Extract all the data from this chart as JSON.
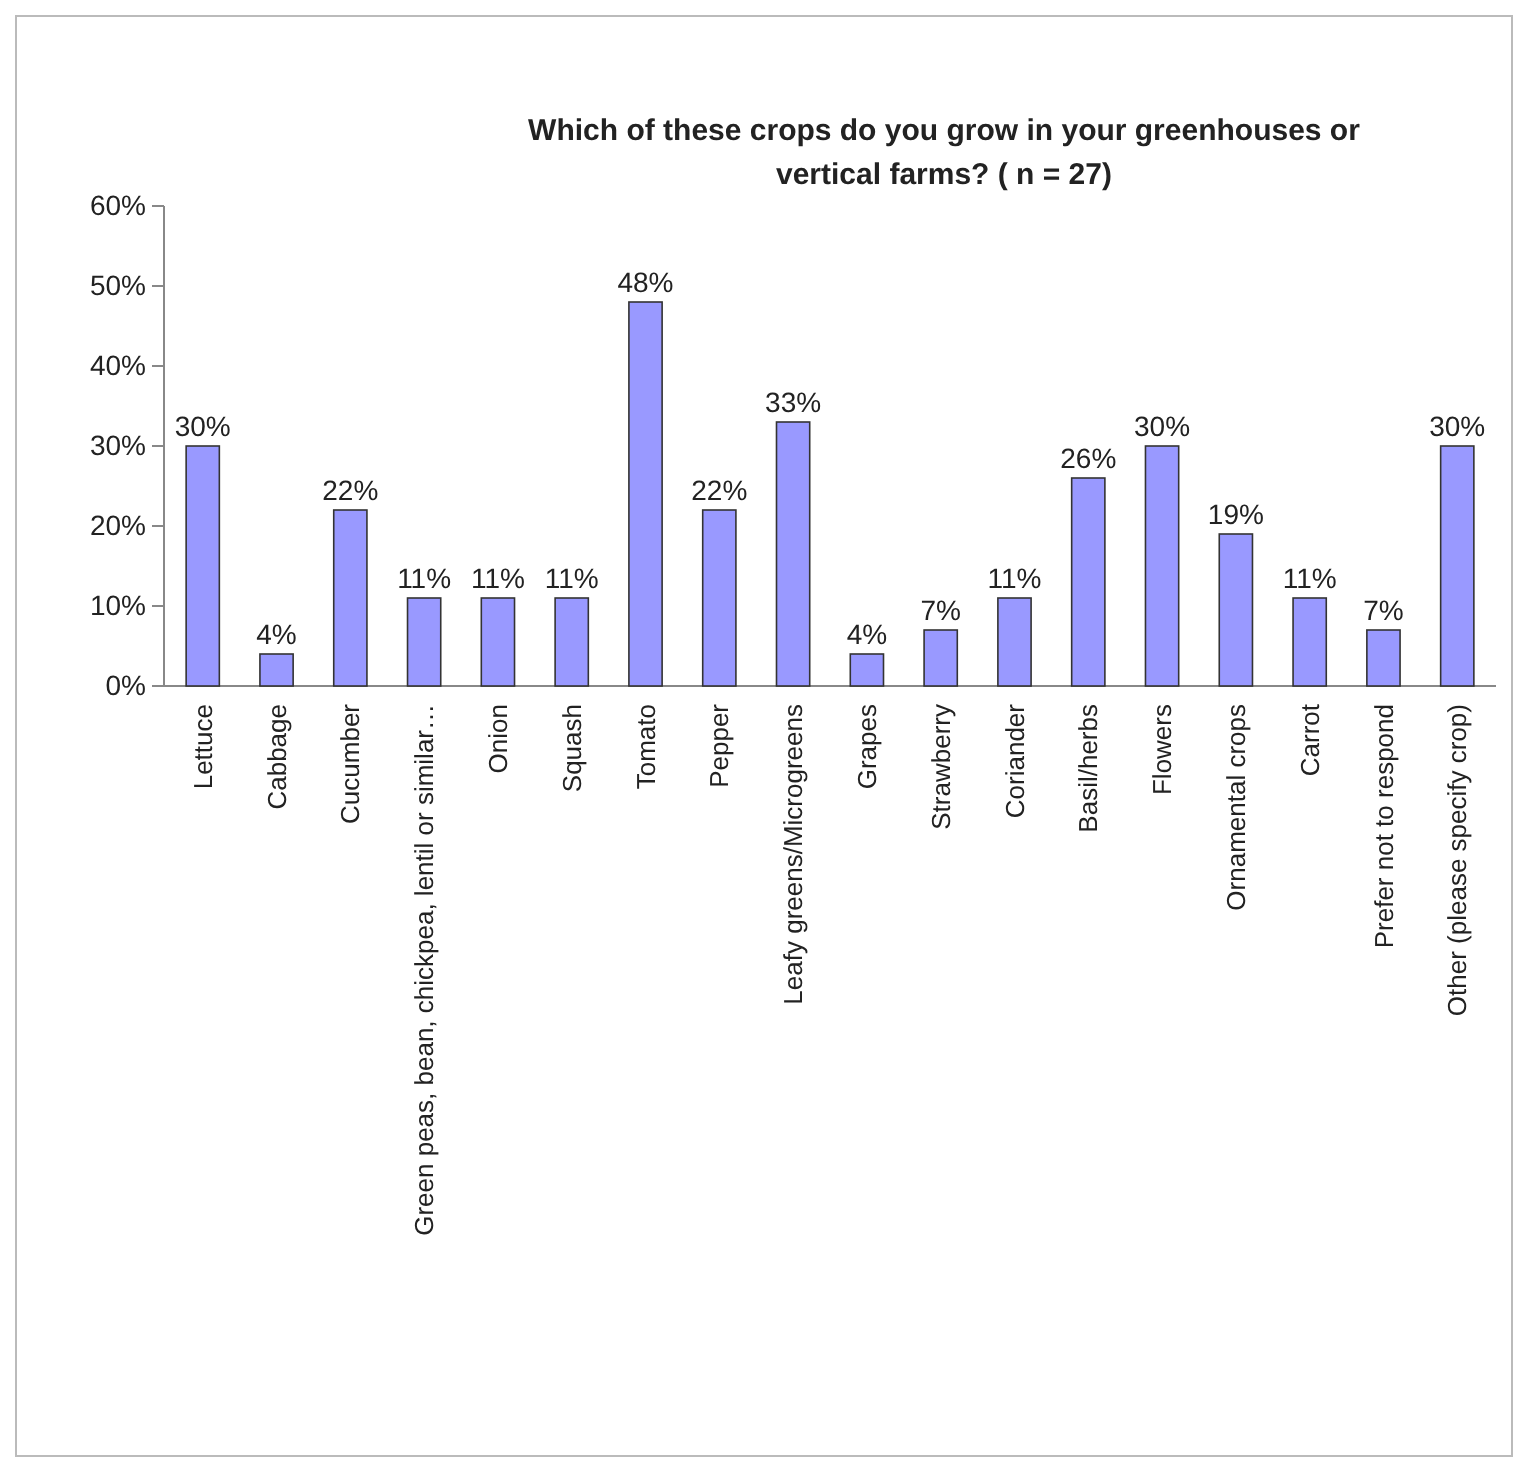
{
  "chart_data": {
    "type": "bar",
    "title": "Which of these crops do you grow in your greenhouses or vertical farms? ( n = 27)",
    "categories": [
      "Lettuce",
      "Cabbage",
      "Cucumber",
      "Green peas, bean, chickpea, lentil or similar…",
      "Onion",
      "Squash",
      "Tomato",
      "Pepper",
      "Leafy greens/Microgreens",
      "Grapes",
      "Strawberry",
      "Coriander",
      "Basil/herbs",
      "Flowers",
      "Ornamental crops",
      "Carrot",
      "Prefer not to respond",
      "Other (please specify crop)"
    ],
    "values": [
      30,
      4,
      22,
      11,
      11,
      11,
      48,
      22,
      33,
      4,
      7,
      11,
      26,
      30,
      19,
      11,
      7,
      30
    ],
    "value_labels": [
      "30%",
      "4%",
      "22%",
      "11%",
      "11%",
      "11%",
      "48%",
      "22%",
      "33%",
      "4%",
      "7%",
      "11%",
      "26%",
      "30%",
      "19%",
      "11%",
      "7%",
      "30%"
    ],
    "color": "#9999ff",
    "ylim": [
      0,
      60
    ],
    "yticks": [
      {
        "value": 0,
        "label": "0%"
      },
      {
        "value": 10,
        "label": "10%"
      },
      {
        "value": 20,
        "label": "20%"
      },
      {
        "value": 30,
        "label": "30%"
      },
      {
        "value": 40,
        "label": "40%"
      },
      {
        "value": 50,
        "label": "50%"
      },
      {
        "value": 60,
        "label": "60%"
      }
    ],
    "grid": false
  }
}
